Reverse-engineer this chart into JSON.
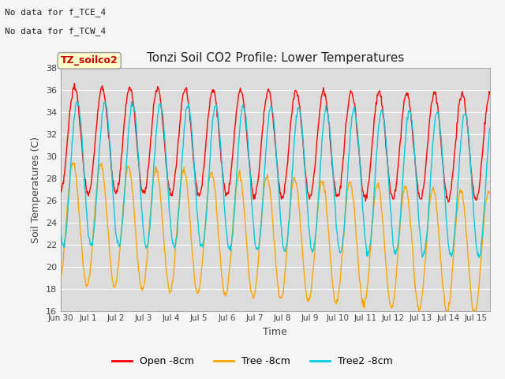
{
  "title": "Tonzi Soil CO2 Profile: Lower Temperatures",
  "xlabel": "Time",
  "ylabel": "Soil Temperatures (C)",
  "note1": "No data for f_TCE_4",
  "note2": "No data for f_TCW_4",
  "legend_label": "TZ_soilco2",
  "ylim": [
    16,
    38
  ],
  "yticks": [
    16,
    18,
    20,
    22,
    24,
    26,
    28,
    30,
    32,
    34,
    36,
    38
  ],
  "line_colors": {
    "open": "#FF0000",
    "tree": "#FFA500",
    "tree2": "#00CCDD"
  },
  "legend_labels": [
    "Open -8cm",
    "Tree -8cm",
    "Tree2 -8cm"
  ],
  "plot_bg_color": "#DCDCDC",
  "fig_bg_color": "#F5F5F5",
  "grid_color": "#FFFFFF",
  "num_days": 15.5,
  "points_per_day": 48,
  "xtick_days": [
    0,
    1,
    2,
    3,
    4,
    5,
    6,
    7,
    8,
    9,
    10,
    11,
    12,
    13,
    14,
    15
  ],
  "xtick_labels": [
    "Jun 30",
    "Jul 1",
    "Jul 2",
    "Jul 3",
    "Jul 4",
    "Jul 5",
    "Jul 6",
    "Jul 7",
    "Jul 8",
    "Jul 9",
    "Jul 10",
    "Jul 11",
    "Jul 12",
    "Jul 13",
    "Jul 14",
    "Jul 15"
  ]
}
